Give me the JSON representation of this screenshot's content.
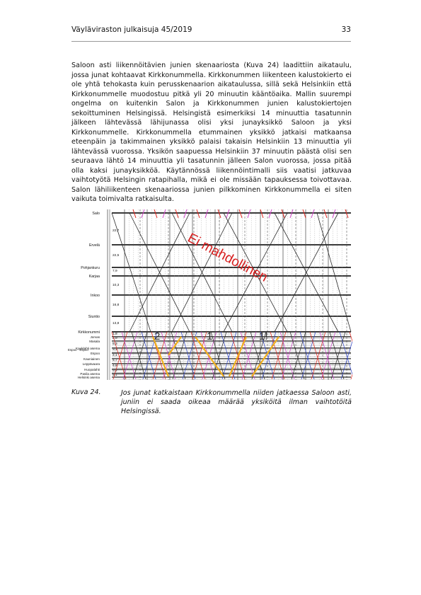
{
  "header": {
    "publication": "Väyläviraston julkaisuja 45/2019",
    "page_number": "33"
  },
  "body_paragraph": "Saloon asti liikennöitävien junien skenaariosta (Kuva 24) laadittiin aikataulu, jossa junat kohtaavat Kirkkonummella. Kirkkonummen liikenteen kalustokierto ei ole yhtä tehokasta kuin perusskenaarion aikataulussa, sillä sekä Helsinkiin että Kirkkonummelle muodostuu pitkä yli 20 minuutin kääntöaika. Mallin suurempi ongelma on kuitenkin Salon ja Kirkkonummen junien kalustokiertojen sekoittuminen Helsingissä. Helsingistä esimerkiksi 14 minuuttia tasatunnin jälkeen lähtevässä lähijunassa olisi yksi junayksikkö Saloon ja yksi Kirkkonummelle. Kirkkonummella etummainen yksikkö jatkaisi matkaansa eteenpäin ja takimmainen yksikkö palaisi takaisin Helsinkiin 13 minuuttia yli lähtevässä vuorossa. Yksikön saapuessa Helsinkiin 37 minuutin päästä olisi sen seuraava lähtö 14 minuuttia yli tasatunnin jälleen Salon vuorossa, jossa pitää olla kaksi junayksikköä. Käytännössä liikennöintimalli siis vaatisi jatkuvaa vaihtotyötä Helsingin ratapihalla, mikä ei ole missään tapauksessa toivottavaa. Salon lähiliikenteen skenaariossa junien pilkkominen Kirkkonummella ei siten vaikuta toimivalta ratkaisulta.",
  "figure": {
    "stations_upper": [
      "Salo",
      "Ervelä",
      "Pohjankuru",
      "Karjaa",
      "Inkoo",
      "Siuntio",
      "Kirkkonummi"
    ],
    "stations_lower": [
      "Jorvas",
      "Masala",
      "Kauklahti asema",
      "Espoo",
      "Kauniainen",
      "Leppävaara",
      "Huopalahti",
      "Pasila asema",
      "Helsinki asema"
    ],
    "station_small_left": "Espoo - Espoo",
    "distances": [
      "22,7",
      "22,5",
      "7,9",
      "10,3",
      "16,8",
      "13,8",
      "1,8",
      "2,9",
      "5,3",
      "3,1",
      "2,1",
      "4,7",
      "4,8",
      "3,2",
      "3,1"
    ],
    "overlay_text": "Ei mahdollinen",
    "markers": [
      "2",
      "1",
      "1!"
    ],
    "colors": {
      "grid": "#3a3a3a",
      "diagonal": "#2b2b2b",
      "red": "#e0231b",
      "pink": "#d040c8",
      "blue": "#2f45c8",
      "orange": "#f2b01e",
      "overlay": "#d81e1e"
    }
  },
  "caption": {
    "label": "Kuva 24.",
    "text": "Jos junat katkaistaan Kirkkonummella niiden jatkaessa Saloon asti, juniin ei saada oikeaa määrää yksiköitä ilman vaihtotöitä Helsingissä."
  }
}
